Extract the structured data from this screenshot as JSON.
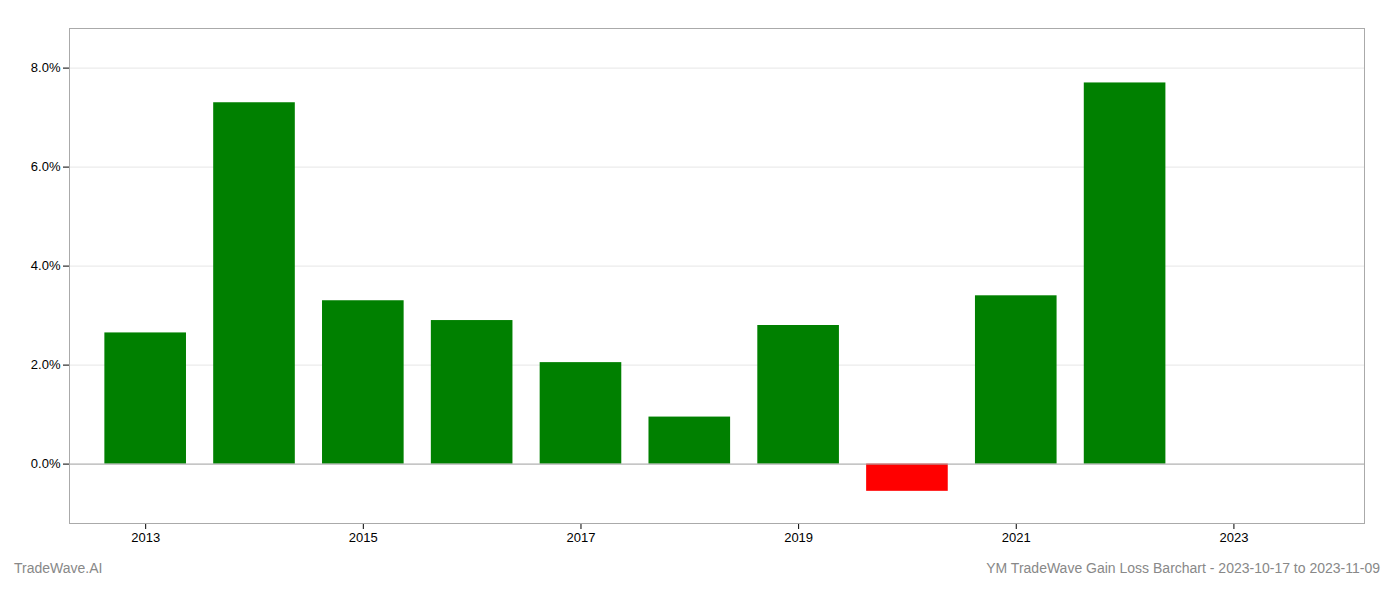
{
  "chart_data": {
    "type": "bar",
    "title": "YM TradeWave Gain Loss Barchart - 2023-10-17 to 2023-11-09",
    "annotations": [
      "TradeWave.AI"
    ],
    "x": [
      2013,
      2014,
      2015,
      2016,
      2017,
      2018,
      2019,
      2020,
      2021,
      2022
    ],
    "values": [
      0.0265,
      0.073,
      0.033,
      0.029,
      0.0205,
      0.0095,
      0.028,
      -0.0055,
      0.034,
      0.077
    ],
    "colors": [
      "#008000",
      "#008000",
      "#008000",
      "#008000",
      "#008000",
      "#008000",
      "#008000",
      "#ff0000",
      "#008000",
      "#008000"
    ],
    "xlim": [
      2012.3,
      2024.2
    ],
    "xticks": [
      2013,
      2015,
      2017,
      2019,
      2021,
      2023
    ],
    "ylim": [
      -0.012,
      0.088
    ],
    "yticks": [
      {
        "value": 0.0,
        "label": "0.0%"
      },
      {
        "value": 0.02,
        "label": "2.0%"
      },
      {
        "value": 0.04,
        "label": "4.0%"
      },
      {
        "value": 0.06,
        "label": "6.0%"
      },
      {
        "value": 0.08,
        "label": "8.0%"
      }
    ],
    "grid": true
  }
}
